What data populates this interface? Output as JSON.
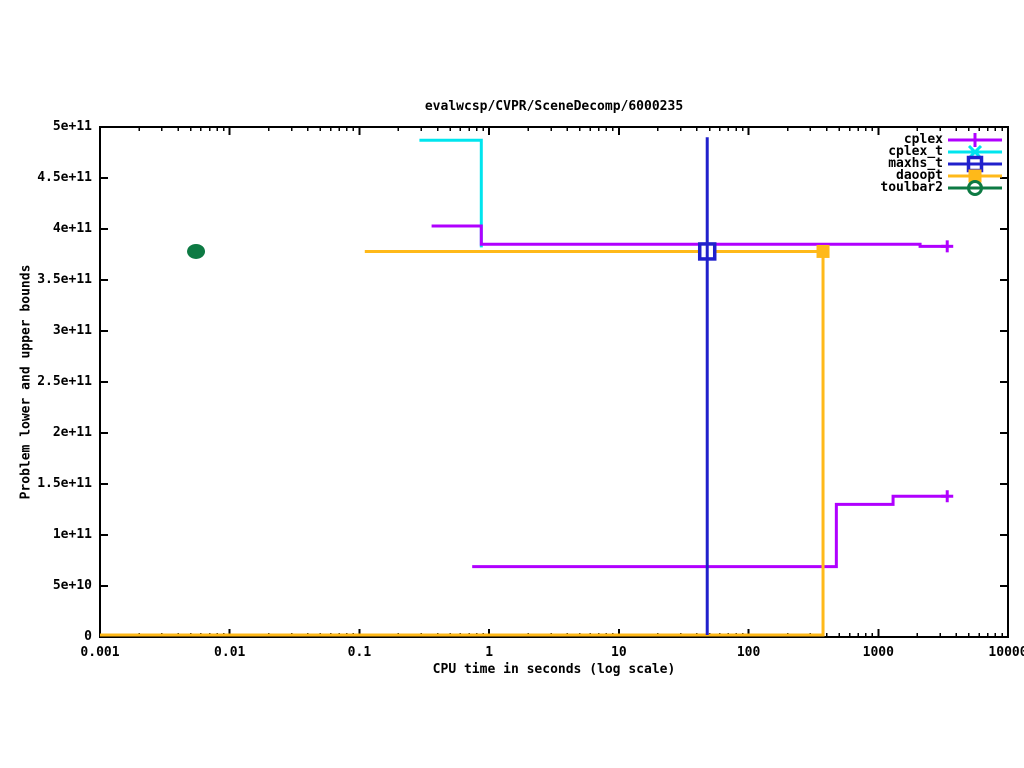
{
  "title": "evalwcsp/CVPR/SceneDecomp/6000235",
  "axes": {
    "x": {
      "label": "CPU time in seconds (log scale)",
      "scale": "log",
      "min": 0.001,
      "max": 10000,
      "tick_labels": [
        "0.001",
        "0.01",
        "0.1",
        "1",
        "10",
        "100",
        "1000",
        "10000"
      ]
    },
    "y": {
      "label": "Problem lower and upper bounds",
      "min": 0,
      "max": 500000000000.0,
      "tick_labels": [
        "0",
        "5e+10",
        "1e+11",
        "1.5e+11",
        "2e+11",
        "2.5e+11",
        "3e+11",
        "3.5e+11",
        "4e+11",
        "4.5e+11",
        "5e+11"
      ]
    }
  },
  "legend": {
    "position": "top-right",
    "entries": [
      {
        "label": "cplex",
        "color": "#b000ff",
        "marker": "plus"
      },
      {
        "label": "cplex_t",
        "color": "#00e5ee",
        "marker": "cross"
      },
      {
        "label": "maxhs_t",
        "color": "#2020cc",
        "marker": "square-open"
      },
      {
        "label": "daoopt",
        "color": "#ffb919",
        "marker": "square-filled"
      },
      {
        "label": "toulbar2",
        "color": "#0d7a43",
        "marker": "circle-open"
      }
    ]
  },
  "chart_data": {
    "type": "line",
    "title": "evalwcsp/CVPR/SceneDecomp/6000235",
    "xlabel": "CPU time in seconds (log scale)",
    "ylabel": "Problem lower and upper bounds",
    "xscale": "log",
    "xlim": [
      0.001,
      10000
    ],
    "ylim": [
      0,
      500000000000.0
    ],
    "grid": false,
    "series": [
      {
        "name": "cplex_t",
        "role": "upper-bound",
        "color": "#00e5ee",
        "points": [
          [
            0.29,
            487000000000.0
          ],
          [
            0.87,
            487000000000.0
          ],
          [
            0.87,
            382000000000.0
          ]
        ]
      },
      {
        "name": "cplex",
        "role": "upper-bound",
        "color": "#b000ff",
        "end_marker": "plus",
        "points": [
          [
            0.36,
            403000000000.0
          ],
          [
            0.87,
            403000000000.0
          ],
          [
            0.87,
            385000000000.0
          ],
          [
            2100,
            385000000000.0
          ],
          [
            2100,
            383000000000.0
          ],
          [
            3400,
            383000000000.0
          ]
        ]
      },
      {
        "name": "cplex",
        "role": "lower-bound",
        "color": "#b000ff",
        "end_marker": "plus",
        "points": [
          [
            0.74,
            69000000000.0
          ],
          [
            475,
            69000000000.0
          ],
          [
            475,
            130000000000.0
          ],
          [
            1300,
            130000000000.0
          ],
          [
            1300,
            138000000000.0
          ],
          [
            3400,
            138000000000.0
          ]
        ]
      },
      {
        "name": "daoopt",
        "role": "lower-bound",
        "color": "#ffb919",
        "points": [
          [
            0.001,
            0
          ],
          [
            375,
            0
          ],
          [
            375,
            378000000000.0
          ]
        ]
      },
      {
        "name": "daoopt",
        "role": "upper-bound",
        "color": "#ffb919",
        "points": [
          [
            0.11,
            378000000000.0
          ],
          [
            375,
            378000000000.0
          ]
        ],
        "markers": [
          {
            "type": "square-filled",
            "at": [
              375,
              378000000000.0
            ]
          }
        ]
      },
      {
        "name": "maxhs_t",
        "role": "bounds-interval",
        "color": "#2020cc",
        "line_over_marker": true,
        "points": [
          [
            48,
            0
          ],
          [
            48,
            490000000000.0
          ]
        ],
        "markers": [
          {
            "type": "square-open",
            "at": [
              48,
              378000000000.0
            ]
          }
        ]
      },
      {
        "name": "toulbar2",
        "role": "solved-point",
        "color": "#0d7a43",
        "points": [],
        "markers": [
          {
            "type": "dot",
            "at": [
              0.0055,
              378000000000.0
            ]
          }
        ]
      }
    ]
  }
}
